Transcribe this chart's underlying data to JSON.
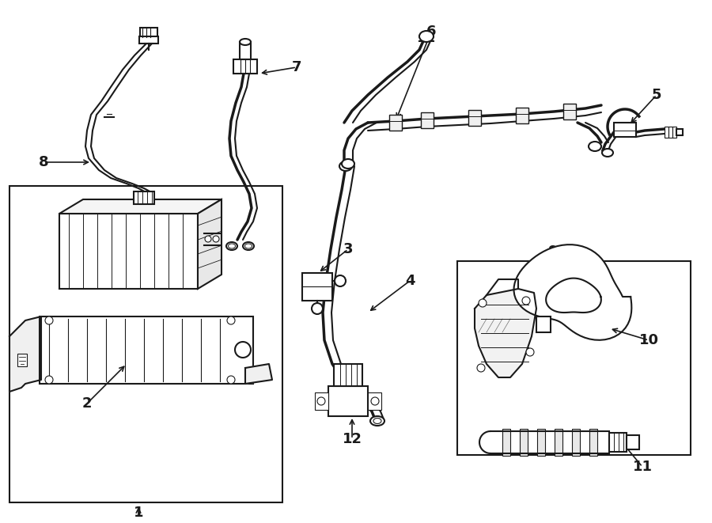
{
  "background_color": "#ffffff",
  "line_color": "#1a1a1a",
  "figsize": [
    9.0,
    6.61
  ],
  "dpi": 100,
  "gray": "#888888",
  "lightgray": "#cccccc"
}
